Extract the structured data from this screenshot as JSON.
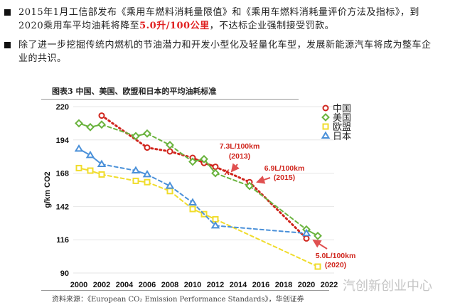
{
  "bullets": [
    {
      "before": "2015年1月工信部发布《乘用车燃料消耗量限值》和《乘用车燃料消耗量评价方法及指标》，到2020乘用车平均油耗将降至",
      "highlight": "5.0升/100公里",
      "after": "，不达标企业强制接受罚款。"
    },
    {
      "before": "除了进一步挖掘传统内燃机的节油潜力和开发小型化及轻量化车型，发展新能源汽车将成为整车企业的共识。",
      "highlight": "",
      "after": ""
    }
  ],
  "figure_title": "图表3 中国、美国、欧盟和日本的平均油耗标准",
  "source": "资料来源：《European CO₂ Emission Performance Standards》，华创证券",
  "watermark": "汽创新创业中心",
  "chart_data": {
    "type": "line",
    "ylabel": "g/km CO2",
    "xlabel": "",
    "xlim": [
      2000,
      2022
    ],
    "ylim": [
      90,
      220
    ],
    "xticks": [
      2000,
      2002,
      2004,
      2006,
      2008,
      2010,
      2012,
      2014,
      2016,
      2018,
      2020,
      2022
    ],
    "yticks": [
      90,
      116,
      142,
      168,
      194,
      220
    ],
    "grid": "horizontal",
    "legend": "top-right",
    "series": [
      {
        "name": "中国",
        "color": "#d0261e",
        "marker": "circle",
        "x": [
          2002,
          2006,
          2008,
          2010,
          2011,
          2012,
          2015,
          2020
        ],
        "y": [
          213,
          188,
          185,
          180,
          176,
          173,
          161,
          117
        ]
      },
      {
        "name": "美国",
        "color": "#6ab33e",
        "marker": "diamond",
        "x": [
          2000,
          2001,
          2002,
          2005,
          2006,
          2008,
          2010,
          2011,
          2012,
          2015,
          2020,
          2021
        ],
        "y": [
          207,
          204,
          206,
          197,
          199,
          190,
          177,
          179,
          168,
          158,
          124,
          119
        ]
      },
      {
        "name": "欧盟",
        "color": "#f0dc2c",
        "marker": "square",
        "x": [
          2000,
          2001,
          2002,
          2005,
          2006,
          2008,
          2010,
          2011,
          2012,
          2021
        ],
        "y": [
          172,
          170,
          167,
          162,
          161,
          154,
          140,
          136,
          132,
          95
        ]
      },
      {
        "name": "日本",
        "color": "#4a90d9",
        "marker": "triangle",
        "x": [
          2000,
          2001,
          2002,
          2005,
          2006,
          2008,
          2010,
          2012,
          2020
        ],
        "y": [
          187,
          182,
          175,
          170,
          167,
          158,
          145,
          127,
          121
        ]
      }
    ],
    "annotations": [
      {
        "text": "7.3L/100km",
        "sub": "(2013)",
        "x": 2013,
        "y": 169
      },
      {
        "text": "6.9L/100km",
        "sub": "(2015)",
        "x": 2015,
        "y": 161
      },
      {
        "text": "5.0L/100km",
        "sub": "(2020)",
        "x": 2020,
        "y": 117
      }
    ],
    "annotation_color": "#d0261e"
  }
}
